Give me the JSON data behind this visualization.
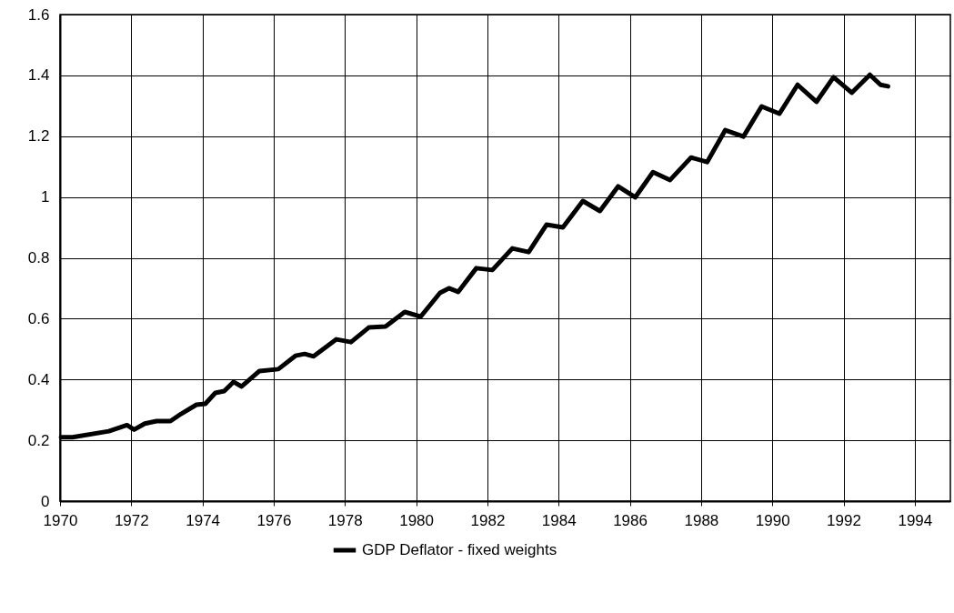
{
  "chart_data": {
    "type": "line",
    "xlim": [
      1970,
      1995
    ],
    "xticks": [
      1970,
      1972,
      1974,
      1976,
      1978,
      1980,
      1982,
      1984,
      1986,
      1988,
      1990,
      1992,
      1994
    ],
    "ylim": [
      0,
      1.6
    ],
    "yticks": [
      0,
      0.2,
      0.4,
      0.6,
      0.8,
      1,
      1.2,
      1.4,
      1.6
    ],
    "grid": true,
    "legend": "bottom",
    "marker": "none",
    "line_style": "solid",
    "series": [
      {
        "name": "GDP Deflator - fixed weights",
        "color": "#000000",
        "x": [
          1970.03,
          1970.35,
          1971.37,
          1971.88,
          1972.08,
          1972.38,
          1972.71,
          1973.1,
          1973.4,
          1973.83,
          1974.08,
          1974.36,
          1974.61,
          1974.87,
          1975.1,
          1975.6,
          1976.13,
          1976.61,
          1976.87,
          1977.12,
          1977.76,
          1978.17,
          1978.67,
          1979.14,
          1979.68,
          1980.13,
          1980.67,
          1980.92,
          1981.18,
          1981.69,
          1982.14,
          1982.7,
          1983.16,
          1983.66,
          1984.12,
          1984.68,
          1985.16,
          1985.67,
          1986.15,
          1986.65,
          1987.13,
          1987.72,
          1988.17,
          1988.68,
          1989.19,
          1989.7,
          1990.2,
          1990.71,
          1991.24,
          1991.72,
          1992.23,
          1992.74,
          1993.04,
          1993.25
        ],
        "values": [
          0.21,
          0.21,
          0.23,
          0.25,
          0.235,
          0.255,
          0.263,
          0.263,
          0.287,
          0.317,
          0.32,
          0.356,
          0.362,
          0.392,
          0.377,
          0.428,
          0.434,
          0.478,
          0.484,
          0.476,
          0.532,
          0.523,
          0.571,
          0.574,
          0.622,
          0.607,
          0.685,
          0.7,
          0.688,
          0.766,
          0.76,
          0.831,
          0.819,
          0.909,
          0.9,
          0.987,
          0.954,
          1.035,
          0.999,
          1.082,
          1.056,
          1.13,
          1.115,
          1.22,
          1.199,
          1.298,
          1.274,
          1.369,
          1.313,
          1.394,
          1.343,
          1.402,
          1.369,
          1.364
        ]
      }
    ]
  }
}
